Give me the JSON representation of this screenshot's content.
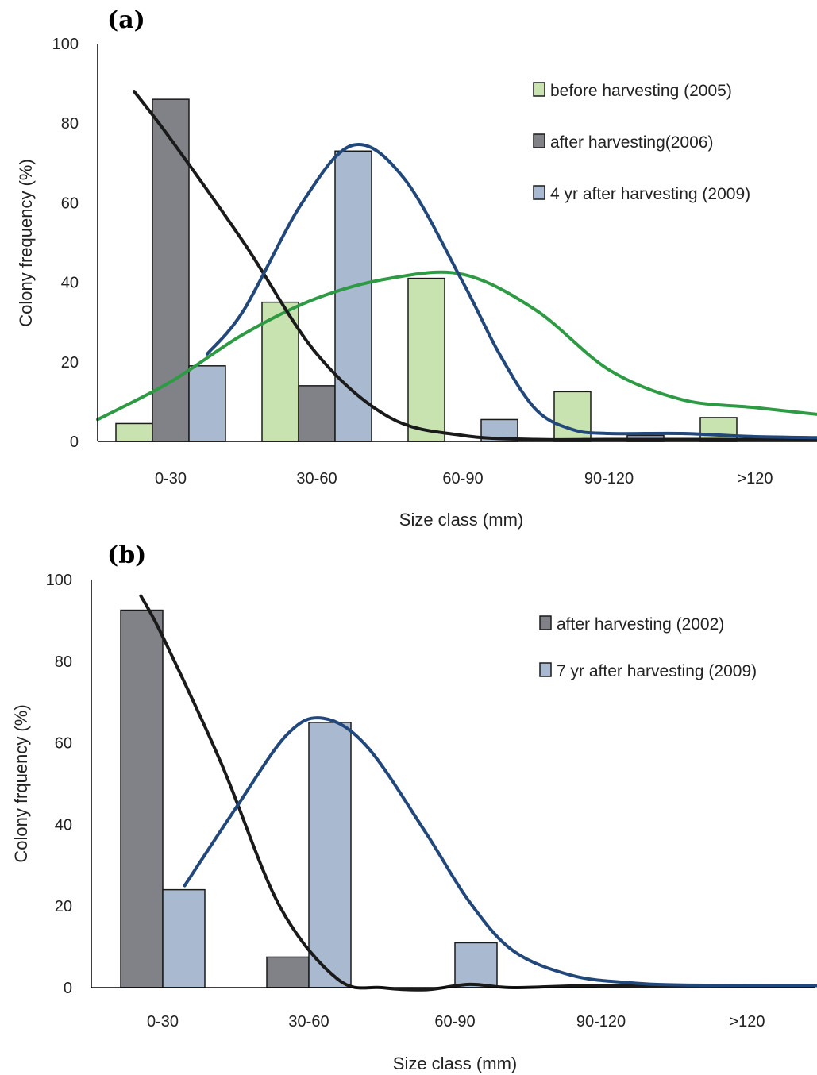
{
  "chart_data": [
    {
      "type": "bar",
      "panel_label": "(a)",
      "categories": [
        "0-30",
        "30-60",
        "60-90",
        "90-120",
        ">120"
      ],
      "xlabel": "Size class (mm)",
      "ylabel": "Colony frequency (%)",
      "ylim": [
        0,
        100
      ],
      "yticks": [
        0,
        20,
        40,
        60,
        80,
        100
      ],
      "grid": false,
      "legend_position": "top-right",
      "series": [
        {
          "name": "before harvesting (2005)",
          "color": "#c9e3b0",
          "values": [
            4.5,
            35,
            41,
            12.5,
            6
          ],
          "fit_color": "#2e9a44",
          "fit": [
            [
              -0.5,
              5.5
            ],
            [
              0.0,
              15
            ],
            [
              0.5,
              27
            ],
            [
              1.0,
              36
            ],
            [
              1.5,
              41
            ],
            [
              2.0,
              42
            ],
            [
              2.5,
              33
            ],
            [
              3.0,
              18
            ],
            [
              3.5,
              10.5
            ],
            [
              4.0,
              8.5
            ],
            [
              4.5,
              6.5
            ]
          ]
        },
        {
          "name": "after harvesting(2006)",
          "color": "#808287",
          "values": [
            86,
            14,
            0,
            0,
            0
          ],
          "fit_color": "#1a1a1a",
          "fit": [
            [
              -0.25,
              88
            ],
            [
              0.0,
              76
            ],
            [
              0.5,
              50
            ],
            [
              1.0,
              22
            ],
            [
              1.5,
              6
            ],
            [
              2.0,
              1.5
            ],
            [
              2.5,
              0.5
            ],
            [
              3.0,
              0.5
            ],
            [
              3.5,
              0.5
            ],
            [
              4.0,
              0.5
            ],
            [
              4.75,
              0.5
            ]
          ]
        },
        {
          "name": "4 yr after harvesting (2009)",
          "color": "#a9b9d0",
          "values": [
            19,
            73,
            5.5,
            1.5,
            0
          ],
          "fit_color": "#22477a",
          "fit": [
            [
              0.25,
              22
            ],
            [
              0.5,
              33
            ],
            [
              0.9,
              60
            ],
            [
              1.25,
              74.5
            ],
            [
              1.6,
              66
            ],
            [
              2.0,
              40
            ],
            [
              2.25,
              22
            ],
            [
              2.5,
              8
            ],
            [
              2.75,
              3
            ],
            [
              3.0,
              2
            ],
            [
              3.5,
              2
            ],
            [
              4.0,
              1.2
            ],
            [
              4.75,
              0.8
            ]
          ]
        }
      ]
    },
    {
      "type": "bar",
      "panel_label": "(b)",
      "categories": [
        "0-30",
        "30-60",
        "60-90",
        "90-120",
        ">120"
      ],
      "xlabel": "Size class (mm)",
      "ylabel": "Colony frquency (%)",
      "ylim": [
        0,
        100
      ],
      "yticks": [
        0,
        20,
        40,
        60,
        80,
        100
      ],
      "grid": false,
      "legend_position": "top-right",
      "series": [
        {
          "name": "after harvesting (2002)",
          "color": "#808287",
          "values": [
            92.5,
            7.5,
            0,
            0,
            0
          ],
          "fit_color": "#1a1a1a",
          "fit": [
            [
              -0.15,
              96
            ],
            [
              0.0,
              86
            ],
            [
              0.4,
              55
            ],
            [
              0.8,
              20
            ],
            [
              1.2,
              2
            ],
            [
              1.5,
              0
            ],
            [
              1.8,
              -0.5
            ],
            [
              2.1,
              0.8
            ],
            [
              2.4,
              0
            ],
            [
              3.0,
              0.5
            ],
            [
              4.5,
              0.5
            ]
          ]
        },
        {
          "name": "7 yr after harvesting (2009)",
          "color": "#a9b9d0",
          "values": [
            24,
            65,
            11,
            0,
            0
          ],
          "fit_color": "#22477a",
          "fit": [
            [
              0.15,
              25
            ],
            [
              0.5,
              44
            ],
            [
              0.85,
              62
            ],
            [
              1.1,
              66
            ],
            [
              1.4,
              59
            ],
            [
              1.8,
              38
            ],
            [
              2.1,
              21
            ],
            [
              2.4,
              9
            ],
            [
              2.8,
              3
            ],
            [
              3.2,
              1.2
            ],
            [
              3.6,
              0.6
            ],
            [
              4.5,
              0.5
            ]
          ]
        }
      ]
    }
  ]
}
